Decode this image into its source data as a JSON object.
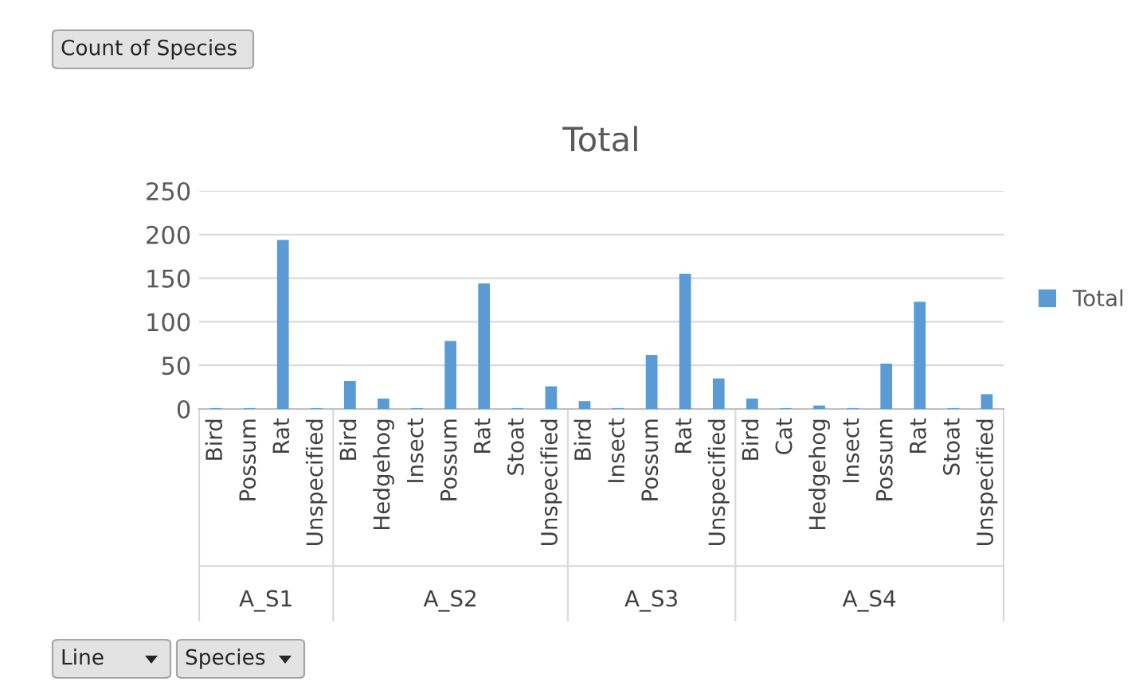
{
  "chart_data": {
    "type": "bar",
    "title": "Total",
    "categories": [
      "Bird",
      "Possum",
      "Rat",
      "Unspecified",
      "Bird",
      "Hedgehog",
      "Insect",
      "Possum",
      "Rat",
      "Stoat",
      "Unspecified",
      "Bird",
      "Insect",
      "Possum",
      "Rat",
      "Unspecified",
      "Bird",
      "Cat",
      "Hedgehog",
      "Insect",
      "Possum",
      "Rat",
      "Stoat",
      "Unspecified"
    ],
    "series": [
      {
        "name": "Total",
        "color": "#5b9bd5",
        "values": [
          1,
          1,
          194,
          1,
          32,
          12,
          1,
          78,
          144,
          1,
          26,
          9,
          1,
          62,
          155,
          35,
          12,
          1,
          4,
          1,
          52,
          123,
          1,
          17
        ]
      }
    ],
    "ylim": [
      0,
      250
    ],
    "yticks": [
      0,
      50,
      100,
      150,
      200,
      250
    ],
    "grid": "y",
    "legend": "right",
    "annotations": [
      "Count of Species",
      "Line",
      "Species",
      "A_S1",
      "A_S2",
      "A_S3",
      "A_S4"
    ]
  }
}
